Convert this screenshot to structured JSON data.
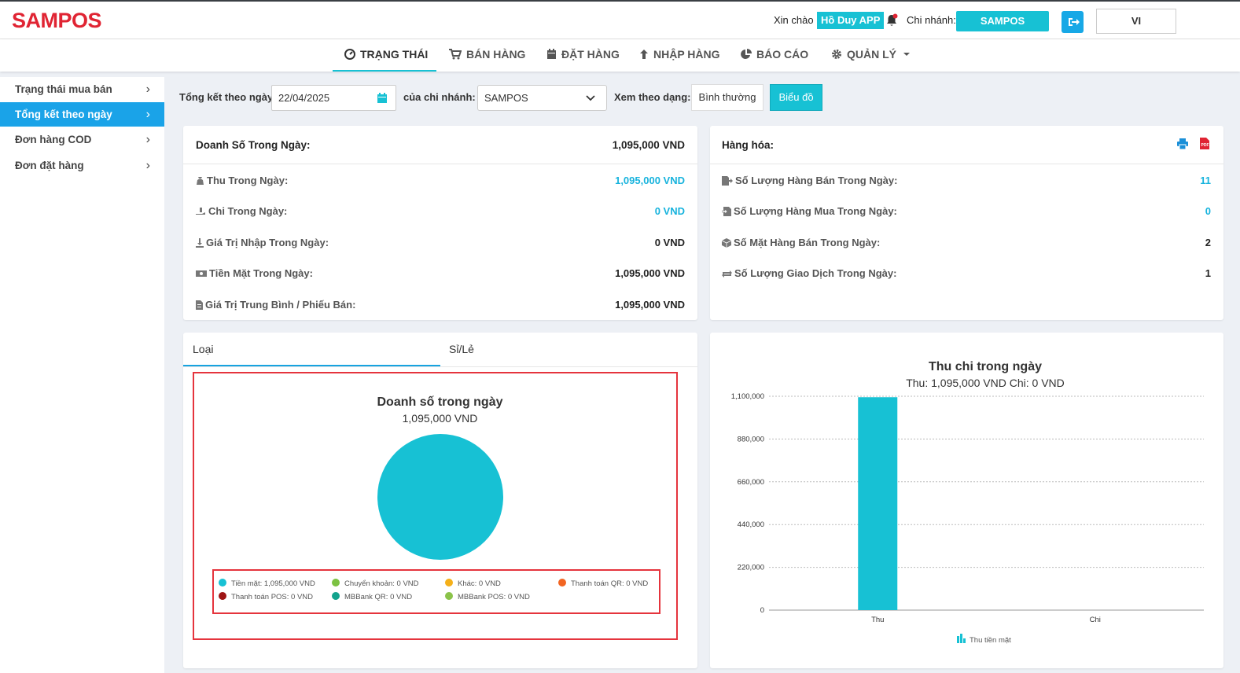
{
  "app": {
    "logo": "SAMPOS"
  },
  "header": {
    "greeting": "Xin chào",
    "user_name": "Hồ Duy APP",
    "branch_label": "Chi nhánh:",
    "branch_name": "SAMPOS",
    "language": "VI"
  },
  "nav": {
    "items": [
      {
        "label": "TRẠNG THÁI",
        "icon": "dashboard-icon"
      },
      {
        "label": "BÁN HÀNG",
        "icon": "cart-icon"
      },
      {
        "label": "ĐẶT HÀNG",
        "icon": "calendar-icon"
      },
      {
        "label": "NHẬP HÀNG",
        "icon": "arrow-up-icon"
      },
      {
        "label": "BÁO CÁO",
        "icon": "pie-chart-icon"
      },
      {
        "label": "QUẢN LÝ",
        "icon": "gear-icon"
      }
    ]
  },
  "sidebar": {
    "items": [
      {
        "label": "Trạng thái mua bán"
      },
      {
        "label": "Tổng kết theo ngày"
      },
      {
        "label": "Đơn hàng COD"
      },
      {
        "label": "Đơn đặt hàng"
      }
    ]
  },
  "filters": {
    "date_label": "Tổng kết theo ngày:",
    "date_value": "22/04/2025",
    "branch_label": "của chi nhánh:",
    "branch_value": "SAMPOS",
    "view_label": "Xem theo dạng:",
    "view_normal": "Bình thường",
    "view_chart": "Biểu đồ"
  },
  "sales_card": {
    "title": "Doanh Số Trong Ngày:",
    "total": "1,095,000 VND",
    "rows": [
      {
        "label": "Thu Trong Ngày:",
        "value": "1,095,000 VND"
      },
      {
        "label": "Chi Trong Ngày:",
        "value": "0 VND"
      },
      {
        "label": "Giá Trị Nhập Trong Ngày:",
        "value": "0 VND"
      },
      {
        "label": "Tiền Mặt Trong Ngày:",
        "value": "1,095,000 VND"
      },
      {
        "label": "Giá Trị Trung Bình / Phiếu Bán:",
        "value": "1,095,000 VND"
      }
    ]
  },
  "goods_card": {
    "title": "Hàng hóa:",
    "rows": [
      {
        "label": "Số Lượng Hàng Bán Trong Ngày:",
        "value": "11"
      },
      {
        "label": "Số Lượng Hàng Mua Trong Ngày:",
        "value": "0"
      },
      {
        "label": "Số Mặt Hàng Bán Trong Ngày:",
        "value": "2"
      },
      {
        "label": "Số Lượng Giao Dịch Trong Ngày:",
        "value": "1"
      }
    ]
  },
  "tabs": [
    {
      "label": "Loại"
    },
    {
      "label": "Sỉ/Lẻ"
    }
  ],
  "chart_data": [
    {
      "type": "pie",
      "title": "Doanh số trong ngày",
      "subtitle": "1,095,000 VND",
      "slices": [
        {
          "name": "Tiền mặt",
          "value": 1095000,
          "legend": "Tiền mặt: 1,095,000 VND",
          "color": "#17c1d4"
        },
        {
          "name": "Chuyển khoản",
          "value": 0,
          "legend": "Chuyển khoản: 0 VND",
          "color": "#7cc242"
        },
        {
          "name": "Khác",
          "value": 0,
          "legend": "Khác: 0 VND",
          "color": "#f5b019"
        },
        {
          "name": "Thanh toán QR",
          "value": 0,
          "legend": "Thanh toán QR: 0 VND",
          "color": "#f26522"
        },
        {
          "name": "Thanh toán POS",
          "value": 0,
          "legend": "Thanh toán POS: 0 VND",
          "color": "#9e1414"
        },
        {
          "name": "MBBank QR",
          "value": 0,
          "legend": "MBBank QR: 0 VND",
          "color": "#12a38d"
        },
        {
          "name": "MBBank POS",
          "value": 0,
          "legend": "MBBank POS: 0 VND",
          "color": "#8bc34a"
        }
      ]
    },
    {
      "type": "bar",
      "title": "Thu chi trong ngày",
      "subtitle": "Thu: 1,095,000 VND Chi: 0 VND",
      "categories": [
        "Thu",
        "Chi"
      ],
      "series": [
        {
          "name": "Thu tiền mặt",
          "values": [
            1095000,
            0
          ],
          "color": "#17c1d4"
        }
      ],
      "ylim": [
        0,
        1100000
      ],
      "yticks": [
        "0",
        "220,000",
        "440,000",
        "660,000",
        "880,000",
        "1,100,000"
      ],
      "ytick_values": [
        0,
        220000,
        440000,
        660000,
        880000,
        1100000
      ],
      "grid": true
    }
  ]
}
